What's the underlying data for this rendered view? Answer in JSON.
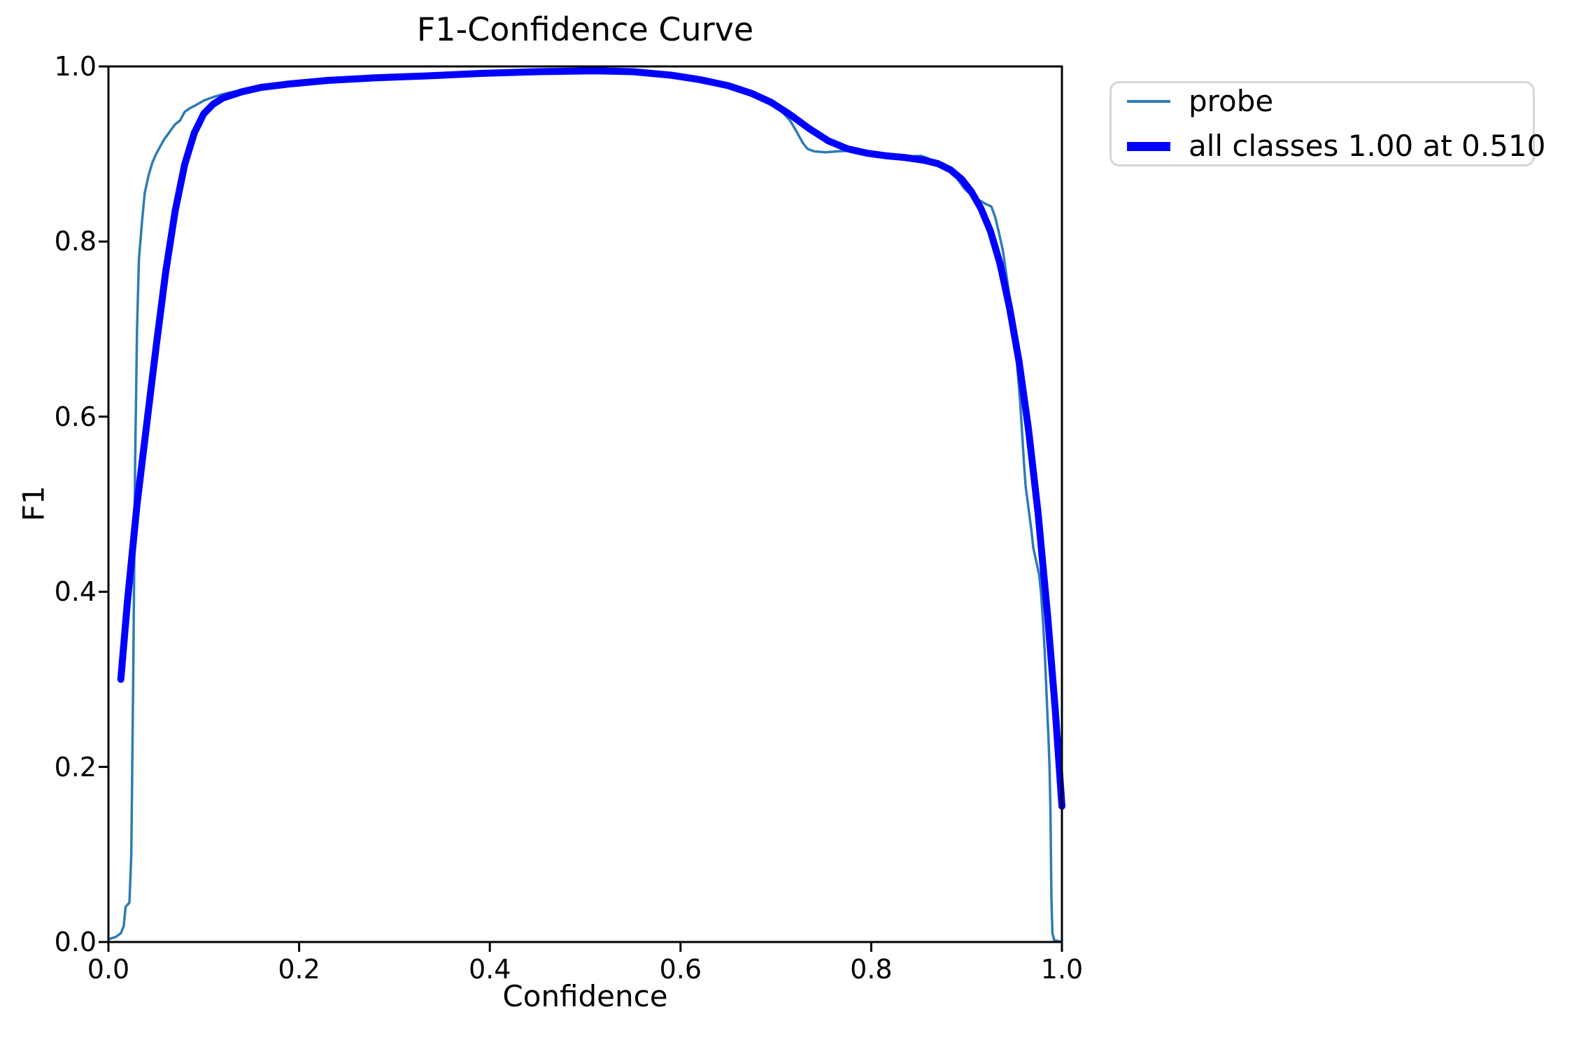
{
  "chart_data": {
    "type": "line",
    "title": "F1-Confidence Curve",
    "xlabel": "Confidence",
    "ylabel": "F1",
    "xlim": [
      0.0,
      1.0
    ],
    "ylim": [
      0.0,
      1.0
    ],
    "grid": false,
    "xticks": [
      0.0,
      0.2,
      0.4,
      0.6,
      0.8,
      1.0
    ],
    "yticks": [
      0.0,
      0.2,
      0.4,
      0.6,
      0.8,
      1.0
    ],
    "xtick_labels": [
      "0.0",
      "0.2",
      "0.4",
      "0.6",
      "0.8",
      "1.0"
    ],
    "ytick_labels": [
      "0.0",
      "0.2",
      "0.4",
      "0.6",
      "0.8",
      "1.0"
    ],
    "best_f1": {
      "value": "1.00",
      "at_confidence": "0.510"
    },
    "legend": {
      "position": "outside upper right",
      "items": [
        {
          "label": "probe",
          "color": "#2d7cb5",
          "weight": "thin"
        },
        {
          "label": "all classes 1.00 at 0.510",
          "color": "#0000ff",
          "weight": "thick"
        }
      ]
    },
    "series": [
      {
        "name": "probe",
        "color": "#2d7cb5",
        "linewidth": 3.5,
        "x": [
          0.0,
          0.008,
          0.013,
          0.016,
          0.018,
          0.022,
          0.024,
          0.026,
          0.028,
          0.03,
          0.032,
          0.035,
          0.038,
          0.042,
          0.046,
          0.05,
          0.054,
          0.058,
          0.062,
          0.066,
          0.07,
          0.075,
          0.08,
          0.085,
          0.092,
          0.1,
          0.11,
          0.122,
          0.135,
          0.15,
          0.17,
          0.2,
          0.24,
          0.28,
          0.33,
          0.38,
          0.43,
          0.48,
          0.51,
          0.54,
          0.57,
          0.6,
          0.63,
          0.655,
          0.675,
          0.695,
          0.705,
          0.715,
          0.722,
          0.728,
          0.733,
          0.74,
          0.752,
          0.765,
          0.78,
          0.8,
          0.82,
          0.838,
          0.852,
          0.86,
          0.868,
          0.875,
          0.882,
          0.89,
          0.898,
          0.905,
          0.912,
          0.92,
          0.926,
          0.93,
          0.934,
          0.938,
          0.942,
          0.946,
          0.95,
          0.953,
          0.956,
          0.958,
          0.96,
          0.962,
          0.965,
          0.968,
          0.97,
          0.973,
          0.976,
          0.978,
          0.98,
          0.982,
          0.984,
          0.986,
          0.987,
          0.988,
          0.989,
          0.99,
          0.992,
          1.0
        ],
        "y": [
          0.003,
          0.006,
          0.01,
          0.018,
          0.04,
          0.045,
          0.1,
          0.3,
          0.55,
          0.7,
          0.78,
          0.82,
          0.855,
          0.875,
          0.89,
          0.9,
          0.908,
          0.916,
          0.922,
          0.928,
          0.934,
          0.938,
          0.948,
          0.952,
          0.956,
          0.961,
          0.965,
          0.969,
          0.972,
          0.975,
          0.978,
          0.981,
          0.984,
          0.987,
          0.989,
          0.991,
          0.993,
          0.995,
          0.996,
          0.995,
          0.993,
          0.989,
          0.984,
          0.977,
          0.969,
          0.958,
          0.95,
          0.938,
          0.925,
          0.913,
          0.906,
          0.903,
          0.902,
          0.903,
          0.904,
          0.901,
          0.898,
          0.897,
          0.898,
          0.895,
          0.888,
          0.884,
          0.881,
          0.872,
          0.86,
          0.853,
          0.848,
          0.843,
          0.84,
          0.828,
          0.81,
          0.79,
          0.76,
          0.73,
          0.7,
          0.66,
          0.62,
          0.585,
          0.55,
          0.52,
          0.495,
          0.47,
          0.45,
          0.435,
          0.42,
          0.4,
          0.37,
          0.33,
          0.28,
          0.23,
          0.2,
          0.15,
          0.05,
          0.01,
          0.002,
          0.0
        ]
      },
      {
        "name": "all classes",
        "color": "#0000ff",
        "linewidth": 10,
        "x": [
          0.013,
          0.02,
          0.03,
          0.04,
          0.05,
          0.06,
          0.07,
          0.08,
          0.09,
          0.1,
          0.11,
          0.12,
          0.14,
          0.16,
          0.19,
          0.23,
          0.28,
          0.33,
          0.39,
          0.45,
          0.51,
          0.55,
          0.59,
          0.62,
          0.65,
          0.675,
          0.695,
          0.715,
          0.735,
          0.755,
          0.775,
          0.795,
          0.815,
          0.835,
          0.855,
          0.87,
          0.883,
          0.895,
          0.905,
          0.915,
          0.925,
          0.935,
          0.945,
          0.955,
          0.965,
          0.975,
          0.985,
          0.993,
          1.0
        ],
        "y": [
          0.3,
          0.39,
          0.5,
          0.59,
          0.68,
          0.765,
          0.835,
          0.888,
          0.924,
          0.946,
          0.957,
          0.964,
          0.971,
          0.976,
          0.98,
          0.984,
          0.987,
          0.989,
          0.992,
          0.994,
          0.995,
          0.994,
          0.99,
          0.985,
          0.978,
          0.969,
          0.959,
          0.945,
          0.929,
          0.915,
          0.906,
          0.901,
          0.898,
          0.896,
          0.893,
          0.889,
          0.882,
          0.871,
          0.857,
          0.838,
          0.812,
          0.775,
          0.725,
          0.663,
          0.585,
          0.49,
          0.372,
          0.265,
          0.155
        ]
      }
    ]
  }
}
